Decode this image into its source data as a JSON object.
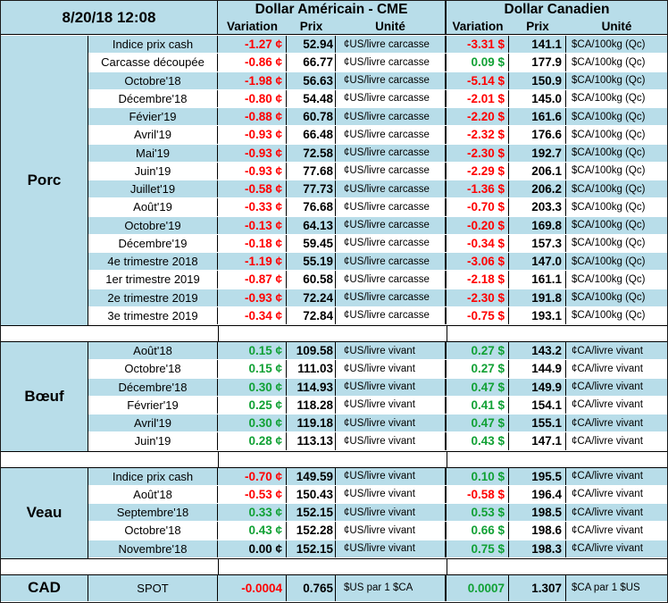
{
  "header": {
    "date": "8/20/18 12:08",
    "usd_title": "Dollar Américain - CME",
    "cad_title": "Dollar Canadien",
    "col_variation": "Variation",
    "col_prix": "Prix",
    "col_unite": "Unité"
  },
  "colors": {
    "negative": "#ff0000",
    "positive": "#11a135",
    "band": "#b8dde9"
  },
  "sections": [
    {
      "name": "Porc",
      "rows": [
        {
          "label": "Indice prix cash",
          "usd_var": "-1.27 ¢",
          "usd_price": "52.94",
          "usd_unit": "¢US/livre carcasse",
          "cad_var": "-3.31 $",
          "cad_price": "141.1",
          "cad_unit": "$CA/100kg (Qc)"
        },
        {
          "label": "Carcasse découpée",
          "usd_var": "-0.86 ¢",
          "usd_price": "66.77",
          "usd_unit": "¢US/livre carcasse",
          "cad_var": "0.09 $",
          "cad_price": "177.9",
          "cad_unit": "$CA/100kg (Qc)"
        },
        {
          "label": "Octobre'18",
          "usd_var": "-1.98 ¢",
          "usd_price": "56.63",
          "usd_unit": "¢US/livre carcasse",
          "cad_var": "-5.14 $",
          "cad_price": "150.9",
          "cad_unit": "$CA/100kg (Qc)"
        },
        {
          "label": "Décembre'18",
          "usd_var": "-0.80 ¢",
          "usd_price": "54.48",
          "usd_unit": "¢US/livre carcasse",
          "cad_var": "-2.01 $",
          "cad_price": "145.0",
          "cad_unit": "$CA/100kg (Qc)"
        },
        {
          "label": "Févier'19",
          "usd_var": "-0.88 ¢",
          "usd_price": "60.78",
          "usd_unit": "¢US/livre carcasse",
          "cad_var": "-2.20 $",
          "cad_price": "161.6",
          "cad_unit": "$CA/100kg (Qc)"
        },
        {
          "label": "Avril'19",
          "usd_var": "-0.93 ¢",
          "usd_price": "66.48",
          "usd_unit": "¢US/livre carcasse",
          "cad_var": "-2.32 $",
          "cad_price": "176.6",
          "cad_unit": "$CA/100kg (Qc)"
        },
        {
          "label": "Mai'19",
          "usd_var": "-0.93 ¢",
          "usd_price": "72.58",
          "usd_unit": "¢US/livre carcasse",
          "cad_var": "-2.30 $",
          "cad_price": "192.7",
          "cad_unit": "$CA/100kg (Qc)"
        },
        {
          "label": "Juin'19",
          "usd_var": "-0.93 ¢",
          "usd_price": "77.68",
          "usd_unit": "¢US/livre carcasse",
          "cad_var": "-2.29 $",
          "cad_price": "206.1",
          "cad_unit": "$CA/100kg (Qc)"
        },
        {
          "label": "Juillet'19",
          "usd_var": "-0.58 ¢",
          "usd_price": "77.73",
          "usd_unit": "¢US/livre carcasse",
          "cad_var": "-1.36 $",
          "cad_price": "206.2",
          "cad_unit": "$CA/100kg (Qc)"
        },
        {
          "label": "Août'19",
          "usd_var": "-0.33 ¢",
          "usd_price": "76.68",
          "usd_unit": "¢US/livre carcasse",
          "cad_var": "-0.70 $",
          "cad_price": "203.3",
          "cad_unit": "$CA/100kg (Qc)"
        },
        {
          "label": "Octobre'19",
          "usd_var": "-0.13 ¢",
          "usd_price": "64.13",
          "usd_unit": "¢US/livre carcasse",
          "cad_var": "-0.20 $",
          "cad_price": "169.8",
          "cad_unit": "$CA/100kg (Qc)"
        },
        {
          "label": "Décembre'19",
          "usd_var": "-0.18 ¢",
          "usd_price": "59.45",
          "usd_unit": "¢US/livre carcasse",
          "cad_var": "-0.34 $",
          "cad_price": "157.3",
          "cad_unit": "$CA/100kg (Qc)"
        },
        {
          "label": "4e trimestre 2018",
          "usd_var": "-1.19 ¢",
          "usd_price": "55.19",
          "usd_unit": "¢US/livre carcasse",
          "cad_var": "-3.06 $",
          "cad_price": "147.0",
          "cad_unit": "$CA/100kg (Qc)"
        },
        {
          "label": "1er trimestre 2019",
          "usd_var": "-0.87 ¢",
          "usd_price": "60.58",
          "usd_unit": "¢US/livre carcasse",
          "cad_var": "-2.18 $",
          "cad_price": "161.1",
          "cad_unit": "$CA/100kg (Qc)"
        },
        {
          "label": "2e trimestre 2019",
          "usd_var": "-0.93 ¢",
          "usd_price": "72.24",
          "usd_unit": "¢US/livre carcasse",
          "cad_var": "-2.30 $",
          "cad_price": "191.8",
          "cad_unit": "$CA/100kg (Qc)"
        },
        {
          "label": "3e trimestre 2019",
          "usd_var": "-0.34 ¢",
          "usd_price": "72.84",
          "usd_unit": "¢US/livre carcasse",
          "cad_var": "-0.75 $",
          "cad_price": "193.1",
          "cad_unit": "$CA/100kg (Qc)"
        }
      ]
    },
    {
      "name": "Bœuf",
      "rows": [
        {
          "label": "Août'18",
          "usd_var": "0.15 ¢",
          "usd_price": "109.58",
          "usd_unit": "¢US/livre vivant",
          "cad_var": "0.27 $",
          "cad_price": "143.2",
          "cad_unit": "¢CA/livre vivant"
        },
        {
          "label": "Octobre'18",
          "usd_var": "0.15 ¢",
          "usd_price": "111.03",
          "usd_unit": "¢US/livre vivant",
          "cad_var": "0.27 $",
          "cad_price": "144.9",
          "cad_unit": "¢CA/livre vivant"
        },
        {
          "label": "Décembre'18",
          "usd_var": "0.30 ¢",
          "usd_price": "114.93",
          "usd_unit": "¢US/livre vivant",
          "cad_var": "0.47 $",
          "cad_price": "149.9",
          "cad_unit": "¢CA/livre vivant"
        },
        {
          "label": "Février'19",
          "usd_var": "0.25 ¢",
          "usd_price": "118.28",
          "usd_unit": "¢US/livre vivant",
          "cad_var": "0.41 $",
          "cad_price": "154.1",
          "cad_unit": "¢CA/livre vivant"
        },
        {
          "label": "Avril'19",
          "usd_var": "0.30 ¢",
          "usd_price": "119.18",
          "usd_unit": "¢US/livre vivant",
          "cad_var": "0.47 $",
          "cad_price": "155.1",
          "cad_unit": "¢CA/livre vivant"
        },
        {
          "label": "Juin'19",
          "usd_var": "0.28 ¢",
          "usd_price": "113.13",
          "usd_unit": "¢US/livre vivant",
          "cad_var": "0.43 $",
          "cad_price": "147.1",
          "cad_unit": "¢CA/livre vivant"
        }
      ]
    },
    {
      "name": "Veau",
      "rows": [
        {
          "label": "Indice prix cash",
          "usd_var": "-0.70 ¢",
          "usd_price": "149.59",
          "usd_unit": "¢US/livre vivant",
          "cad_var": "0.10 $",
          "cad_price": "195.5",
          "cad_unit": "¢CA/livre vivant"
        },
        {
          "label": "Août'18",
          "usd_var": "-0.53 ¢",
          "usd_price": "150.43",
          "usd_unit": "¢US/livre vivant",
          "cad_var": "-0.58 $",
          "cad_price": "196.4",
          "cad_unit": "¢CA/livre vivant"
        },
        {
          "label": "Septembre'18",
          "usd_var": "0.33 ¢",
          "usd_price": "152.15",
          "usd_unit": "¢US/livre vivant",
          "cad_var": "0.53 $",
          "cad_price": "198.5",
          "cad_unit": "¢CA/livre vivant"
        },
        {
          "label": "Octobre'18",
          "usd_var": "0.43 ¢",
          "usd_price": "152.28",
          "usd_unit": "¢US/livre vivant",
          "cad_var": "0.66 $",
          "cad_price": "198.6",
          "cad_unit": "¢CA/livre vivant"
        },
        {
          "label": "Novembre'18",
          "usd_var": "0.00 ¢",
          "usd_price": "152.15",
          "usd_unit": "¢US/livre vivant",
          "cad_var": "0.75 $",
          "cad_price": "198.3",
          "cad_unit": "¢CA/livre vivant"
        }
      ]
    }
  ],
  "cad": {
    "name": "CAD",
    "label": "SPOT",
    "usd_var": "-0.0004",
    "usd_price": "0.765",
    "usd_unit": "$US par 1 $CA",
    "cad_var": "0.0007",
    "cad_price": "1.307",
    "cad_unit": "$CA par 1 $US"
  }
}
